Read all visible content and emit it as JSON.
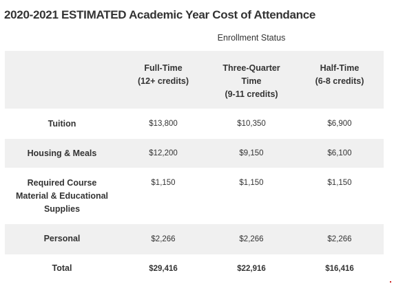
{
  "title": "2020-2021 ESTIMATED Academic Year Cost of Attendance",
  "enrollment_status_label": "Enrollment Status",
  "headers": [
    [
      "Full-Time",
      "(12+ credits)"
    ],
    [
      "Three-Quarter",
      "Time",
      "(9-11 credits)"
    ],
    [
      "Half-Time",
      "(6-8 credits)"
    ]
  ],
  "rows": [
    {
      "label": [
        "Tuition"
      ],
      "values": [
        "$13,800",
        "$10,350",
        "$6,900"
      ]
    },
    {
      "label": [
        "Housing & Meals"
      ],
      "values": [
        "$12,200",
        "$9,150",
        "$6,100"
      ]
    },
    {
      "label": [
        "Required Course",
        "Material & Educational",
        "Supplies"
      ],
      "values": [
        "$1,150",
        "$1,150",
        "$1,150"
      ]
    },
    {
      "label": [
        "Personal"
      ],
      "values": [
        "$2,266",
        "$2,266",
        "$2,266"
      ]
    },
    {
      "label": [
        "Total"
      ],
      "values": [
        "$29,416",
        "$22,916",
        "$16,416"
      ]
    }
  ],
  "colors": {
    "row_shade": "#f0f0f0",
    "text": "#333333"
  }
}
